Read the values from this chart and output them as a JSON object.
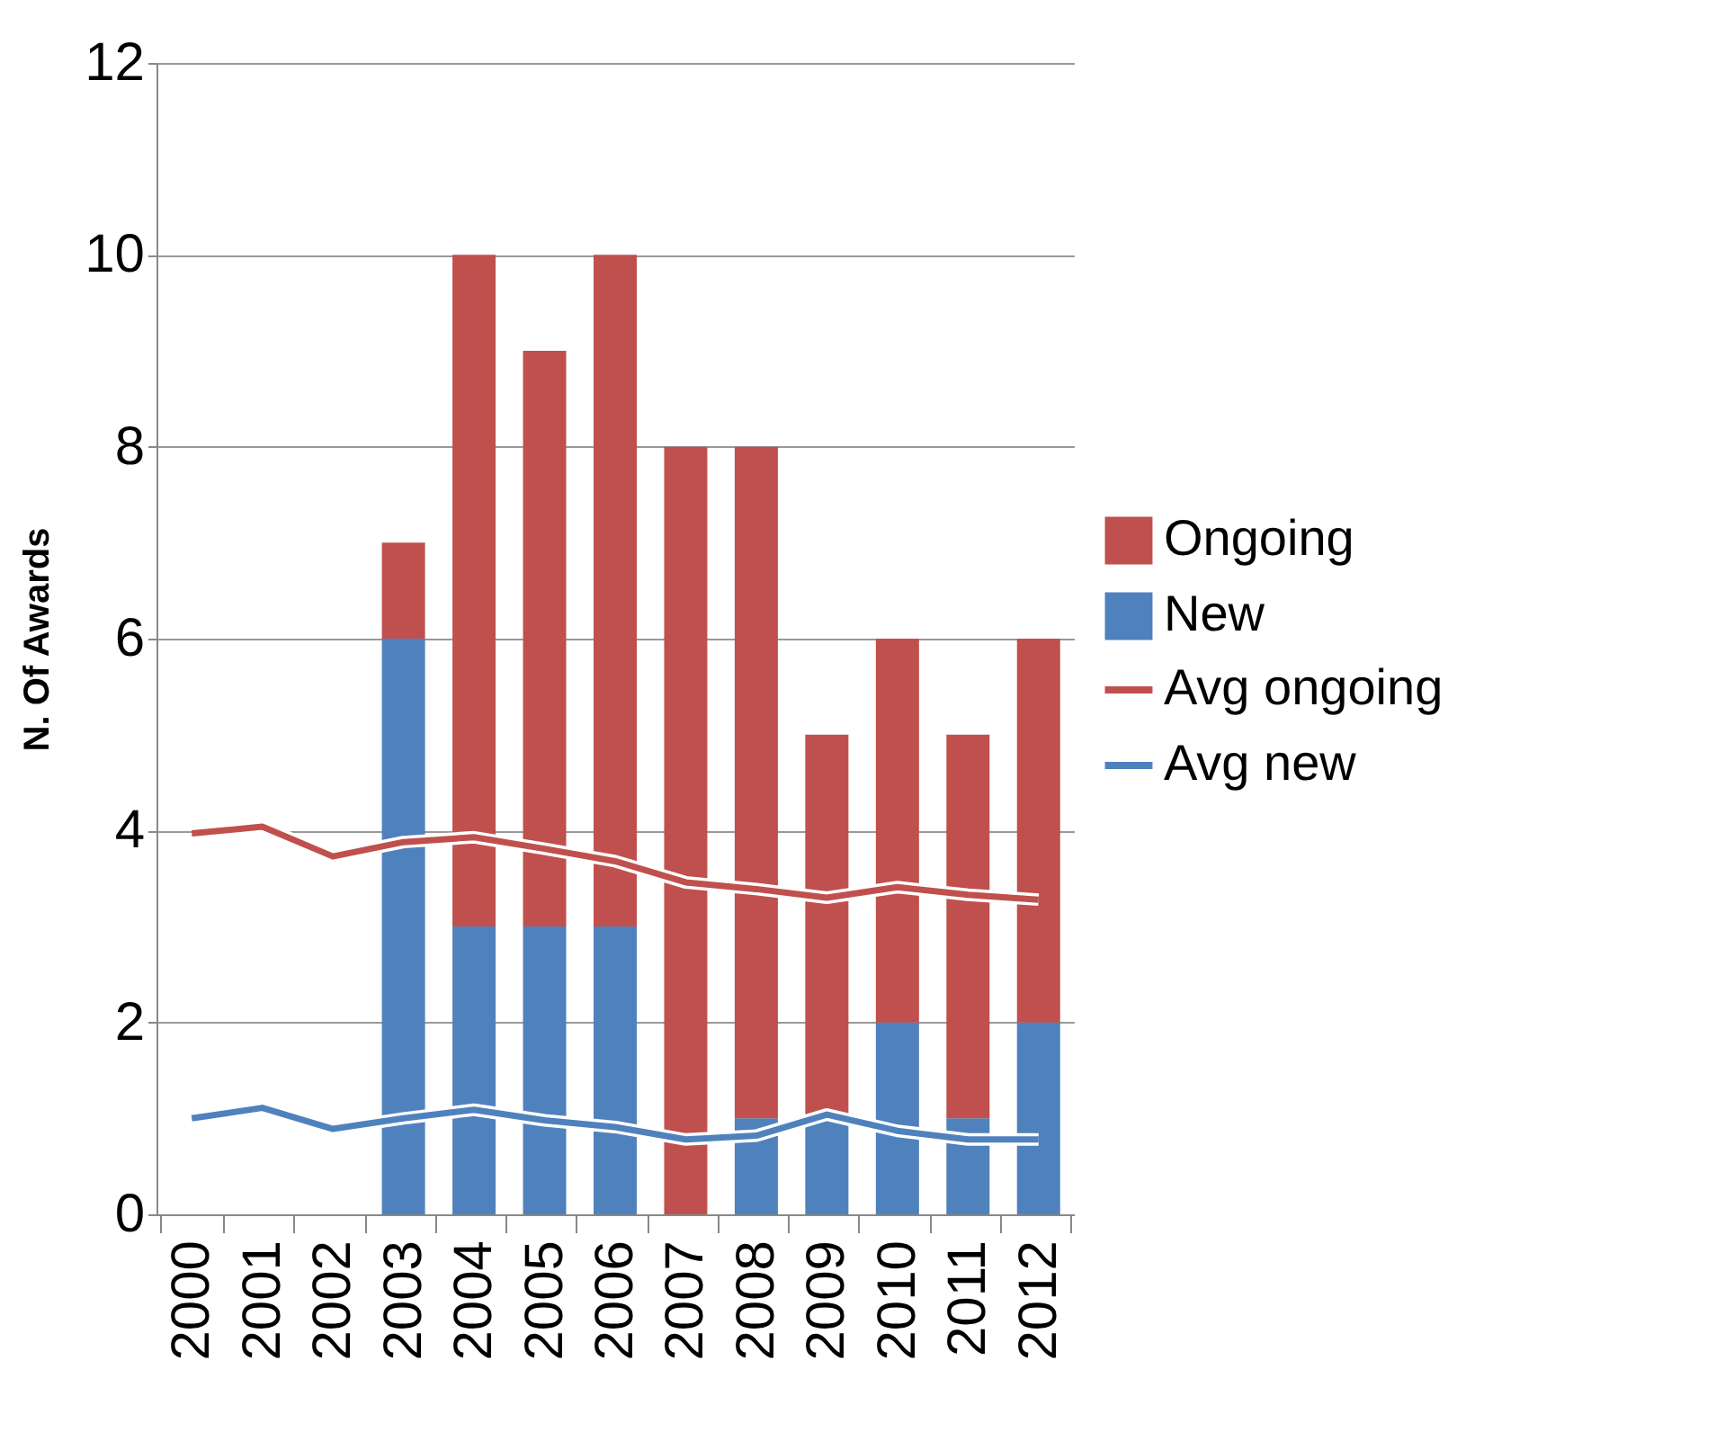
{
  "chart_data": {
    "type": "bar",
    "stacked": true,
    "ylabel": "N. Of Awards",
    "categories": [
      "2000",
      "2001",
      "2002",
      "2003",
      "2004",
      "2005",
      "2006",
      "2007",
      "2008",
      "2009",
      "2010",
      "2011",
      "2012"
    ],
    "series": [
      {
        "name": "New",
        "color": "#4f81bd",
        "values": [
          null,
          null,
          null,
          6,
          3,
          3,
          3,
          0,
          1,
          1,
          2,
          1,
          2
        ]
      },
      {
        "name": "Ongoing",
        "color": "#c0504d",
        "values": [
          null,
          null,
          null,
          1,
          7,
          6,
          7,
          8,
          7,
          4,
          4,
          4,
          4
        ]
      },
      {
        "name": "Avg ongoing",
        "type": "line",
        "color": "#c0504d",
        "values": [
          3.97,
          4.04,
          3.73,
          3.88,
          3.93,
          3.81,
          3.68,
          3.46,
          3.39,
          3.3,
          3.41,
          3.33,
          3.28
        ]
      },
      {
        "name": "Avg new",
        "type": "line",
        "color": "#4f81bd",
        "values": [
          1.0,
          1.11,
          0.89,
          1.0,
          1.09,
          0.98,
          0.91,
          0.78,
          0.82,
          1.04,
          0.87,
          0.78,
          0.78
        ]
      }
    ],
    "ylim": [
      0,
      12
    ],
    "yticks": [
      0,
      2,
      4,
      6,
      8,
      10,
      12
    ],
    "grid": "y",
    "legend": "right",
    "marker": "none",
    "line_style": "solid"
  }
}
